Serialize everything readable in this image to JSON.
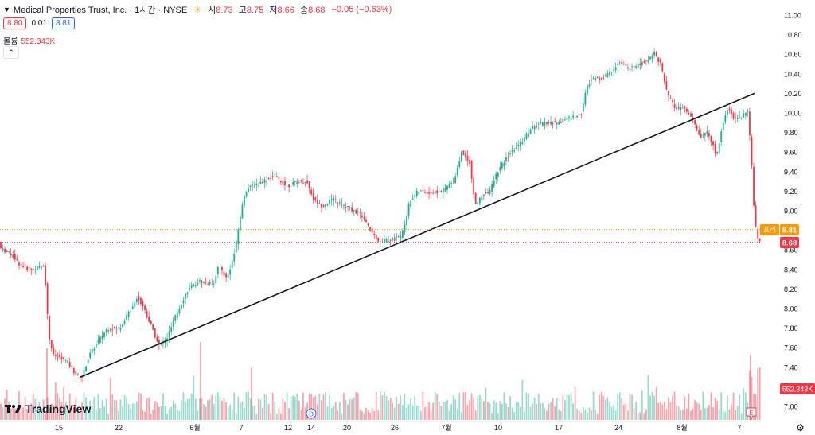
{
  "header": {
    "symbol_title": "Medical Properties Trust, Inc. · 1시간 · NYSE",
    "session_icon": "sun-icon",
    "ohlc": [
      {
        "label": "시",
        "value": "8.73"
      },
      {
        "label": "고",
        "value": "8.75"
      },
      {
        "label": "저",
        "value": "8.66"
      },
      {
        "label": "종",
        "value": "8.68"
      }
    ],
    "change": "−0.05 (−0.63%)",
    "bid": "8.80",
    "spread": "0.01",
    "ask": "8.81",
    "volume_label": "볼륨",
    "volume_value": "552.343K",
    "collapse_icon": "chevron-up-icon"
  },
  "logo": {
    "text": "TradingView"
  },
  "price_tags": {
    "premarket_label": "프리",
    "premarket_value": "8.81",
    "last_value": "8.68",
    "volume_value": "552.343K"
  },
  "markers": {
    "dividend": "D",
    "earnings": "E"
  },
  "colors": {
    "up": "#22ab94",
    "down": "#f23645",
    "premarket": "#ff9800",
    "trendline": "#131722"
  },
  "chart_data": {
    "type": "candlestick",
    "y_ticks": [
      "11.00",
      "10.80",
      "10.60",
      "10.40",
      "10.20",
      "10.00",
      "9.80",
      "9.60",
      "9.40",
      "9.20",
      "9.00",
      "8.80",
      "8.60",
      "8.40",
      "8.20",
      "8.00",
      "7.80",
      "7.60",
      "7.40",
      "7.20",
      "7.00"
    ],
    "ylim": [
      6.9,
      11.1
    ],
    "x_ticks": [
      "15",
      "22",
      "6월",
      "7",
      "12",
      "14",
      "20",
      "26",
      "7월",
      "10",
      "17",
      "24",
      "8월",
      "7"
    ],
    "price_path": [
      [
        0,
        8.62
      ],
      [
        15,
        8.55
      ],
      [
        25,
        8.45
      ],
      [
        38,
        8.4
      ],
      [
        50,
        8.42
      ],
      [
        56,
        8.45
      ],
      [
        58,
        8.1
      ],
      [
        62,
        7.7
      ],
      [
        67,
        7.52
      ],
      [
        75,
        7.5
      ],
      [
        85,
        7.45
      ],
      [
        95,
        7.33
      ],
      [
        103,
        7.3
      ],
      [
        112,
        7.52
      ],
      [
        122,
        7.65
      ],
      [
        135,
        7.8
      ],
      [
        150,
        7.8
      ],
      [
        165,
        8.0
      ],
      [
        172,
        8.12
      ],
      [
        180,
        8.02
      ],
      [
        195,
        7.72
      ],
      [
        200,
        7.62
      ],
      [
        210,
        7.7
      ],
      [
        222,
        7.95
      ],
      [
        235,
        8.18
      ],
      [
        250,
        8.28
      ],
      [
        268,
        8.25
      ],
      [
        275,
        8.45
      ],
      [
        285,
        8.3
      ],
      [
        295,
        8.58
      ],
      [
        302,
        8.95
      ],
      [
        308,
        9.2
      ],
      [
        318,
        9.26
      ],
      [
        330,
        9.3
      ],
      [
        345,
        9.36
      ],
      [
        360,
        9.25
      ],
      [
        375,
        9.3
      ],
      [
        385,
        9.3
      ],
      [
        395,
        9.1
      ],
      [
        405,
        9.05
      ],
      [
        418,
        9.12
      ],
      [
        432,
        9.05
      ],
      [
        445,
        9.0
      ],
      [
        455,
        8.95
      ],
      [
        465,
        8.8
      ],
      [
        475,
        8.7
      ],
      [
        490,
        8.7
      ],
      [
        505,
        8.75
      ],
      [
        515,
        9.1
      ],
      [
        525,
        9.2
      ],
      [
        540,
        9.18
      ],
      [
        555,
        9.2
      ],
      [
        570,
        9.3
      ],
      [
        580,
        9.6
      ],
      [
        590,
        9.5
      ],
      [
        597,
        9.05
      ],
      [
        605,
        9.15
      ],
      [
        615,
        9.2
      ],
      [
        625,
        9.4
      ],
      [
        640,
        9.58
      ],
      [
        655,
        9.7
      ],
      [
        668,
        9.85
      ],
      [
        685,
        9.9
      ],
      [
        700,
        9.9
      ],
      [
        715,
        9.95
      ],
      [
        730,
        9.98
      ],
      [
        735,
        10.2
      ],
      [
        742,
        10.35
      ],
      [
        755,
        10.35
      ],
      [
        765,
        10.4
      ],
      [
        778,
        10.52
      ],
      [
        790,
        10.45
      ],
      [
        805,
        10.5
      ],
      [
        815,
        10.55
      ],
      [
        822,
        10.62
      ],
      [
        830,
        10.5
      ],
      [
        838,
        10.2
      ],
      [
        848,
        10.05
      ],
      [
        858,
        10.05
      ],
      [
        865,
        10.0
      ],
      [
        872,
        9.9
      ],
      [
        880,
        9.75
      ],
      [
        888,
        9.8
      ],
      [
        895,
        9.7
      ],
      [
        900,
        9.55
      ],
      [
        907,
        9.85
      ],
      [
        914,
        10.05
      ],
      [
        922,
        9.95
      ],
      [
        930,
        9.95
      ],
      [
        940,
        10.02
      ],
      [
        945,
        9.38
      ],
      [
        948,
        8.9
      ],
      [
        952,
        8.72
      ],
      [
        958,
        8.68
      ]
    ],
    "trendline": {
      "from": [
        101,
        7.3
      ],
      "to": [
        948,
        10.2
      ]
    },
    "last_price": 8.68,
    "premarket_price": 8.81
  }
}
